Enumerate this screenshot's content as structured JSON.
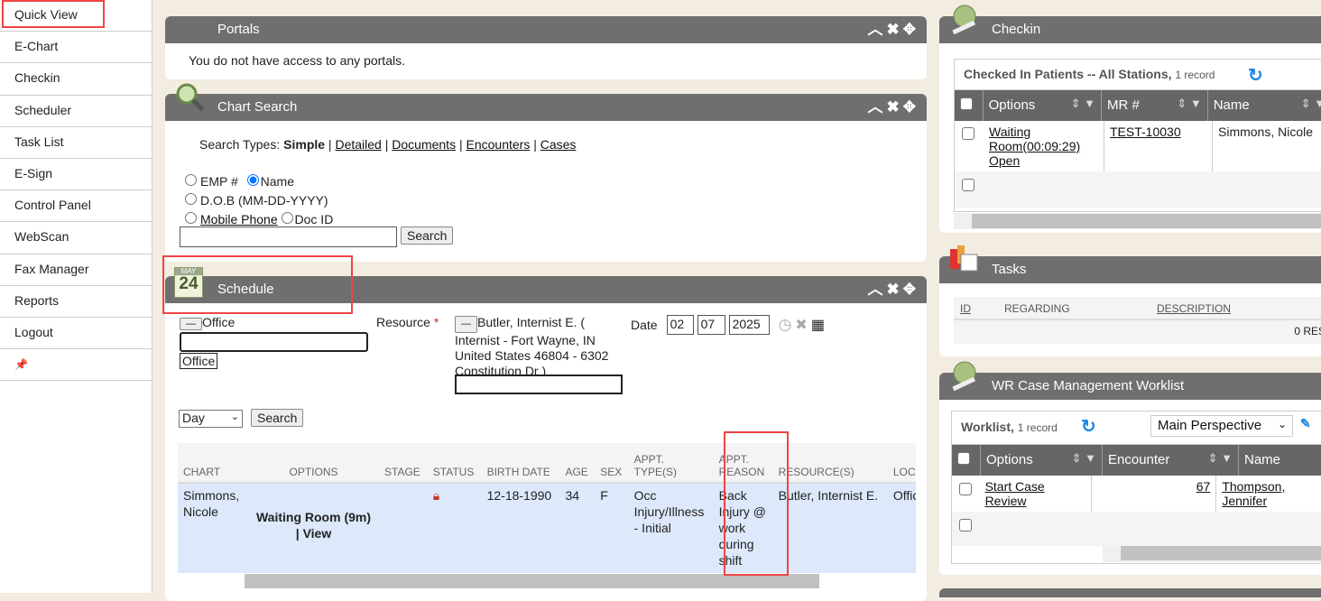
{
  "sidebar": {
    "items": [
      {
        "label": "Quick View"
      },
      {
        "label": "E-Chart"
      },
      {
        "label": "Checkin"
      },
      {
        "label": "Scheduler"
      },
      {
        "label": "Task List"
      },
      {
        "label": "E-Sign"
      },
      {
        "label": "Control Panel"
      },
      {
        "label": "WebScan"
      },
      {
        "label": "Fax Manager"
      },
      {
        "label": "Reports"
      },
      {
        "label": "Logout"
      }
    ],
    "pin_icon": "pin-icon"
  },
  "portals": {
    "title": "Portals",
    "message": "You do not have access to any portals."
  },
  "chart_search": {
    "title": "Chart Search",
    "search_types_label": "Search Types:",
    "types": [
      "Simple",
      "Detailed",
      "Documents",
      "Encounters",
      "Cases"
    ],
    "opt_emp": "EMP #",
    "opt_name": "Name",
    "opt_dob": "D.O.B (MM-DD-YYYY)",
    "opt_mobile": "Mobile Phone",
    "opt_docid": "Doc ID",
    "selected": "Name",
    "search_value": "",
    "search_button": "Search"
  },
  "schedule": {
    "title": "Schedule",
    "icon_month": "MAY",
    "icon_day": "24",
    "office_label": "Office",
    "office_tag": "Office",
    "resource_label": "Resource",
    "required_mark": "*",
    "resource_value": "Butler, Internist E. ( Internist - Fort Wayne, IN United States 46804 - 6302 Constitution Dr )",
    "date_label": "Date",
    "date_mm": "02",
    "date_dd": "07",
    "date_yyyy": "2025",
    "view_select": "Day",
    "search_button": "Search",
    "columns": [
      "CHART",
      "OPTIONS",
      "STAGE",
      "STATUS",
      "BIRTH DATE",
      "AGE",
      "SEX",
      "APPT. TYPE(S)",
      "APPT. REASON",
      "RESOURCE(S)",
      "LOCAT"
    ],
    "rows": [
      {
        "chart": "Simmons, Nicole",
        "options_status": "Waiting Room (9m)",
        "options_view": "| View",
        "stage": "",
        "status_icon": "lock-icon",
        "birth_date": "12-18-1990",
        "age": "34",
        "sex": "F",
        "appt_type": "Occ Injury/Illness - Initial",
        "appt_reason": "Back Injury @ work during shift",
        "resource": "Butler, Internist E.",
        "location": "Office"
      }
    ]
  },
  "checkin": {
    "title": "Checkin",
    "grid_title": "Checked In Patients -- All Stations,",
    "record_count": "1 record",
    "columns": [
      "Options",
      "MR #",
      "Name"
    ],
    "rows": [
      {
        "options": "Waiting Room(00:09:29) Open",
        "mr": "TEST-10030",
        "name": "Simmons, Nicole"
      }
    ]
  },
  "tasks": {
    "title": "Tasks",
    "columns": [
      "ID",
      "REGARDING",
      "DESCRIPTION"
    ],
    "results": "0 RES"
  },
  "worklist": {
    "title": "WR Case Management Worklist",
    "grid_title": "Worklist,",
    "record_count": "1 record",
    "perspective": "Main Perspective",
    "columns": [
      "Options",
      "Encounter",
      "Name"
    ],
    "rows": [
      {
        "options": "Start Case Review",
        "encounter": "67",
        "name": "Thompson, Jennifer"
      }
    ]
  },
  "colors": {
    "header": "#6f6f6f",
    "background": "#f3ece0",
    "highlight": "#ef4444",
    "row_selected": "#dde8fb",
    "refresh": "#1e88e5"
  }
}
